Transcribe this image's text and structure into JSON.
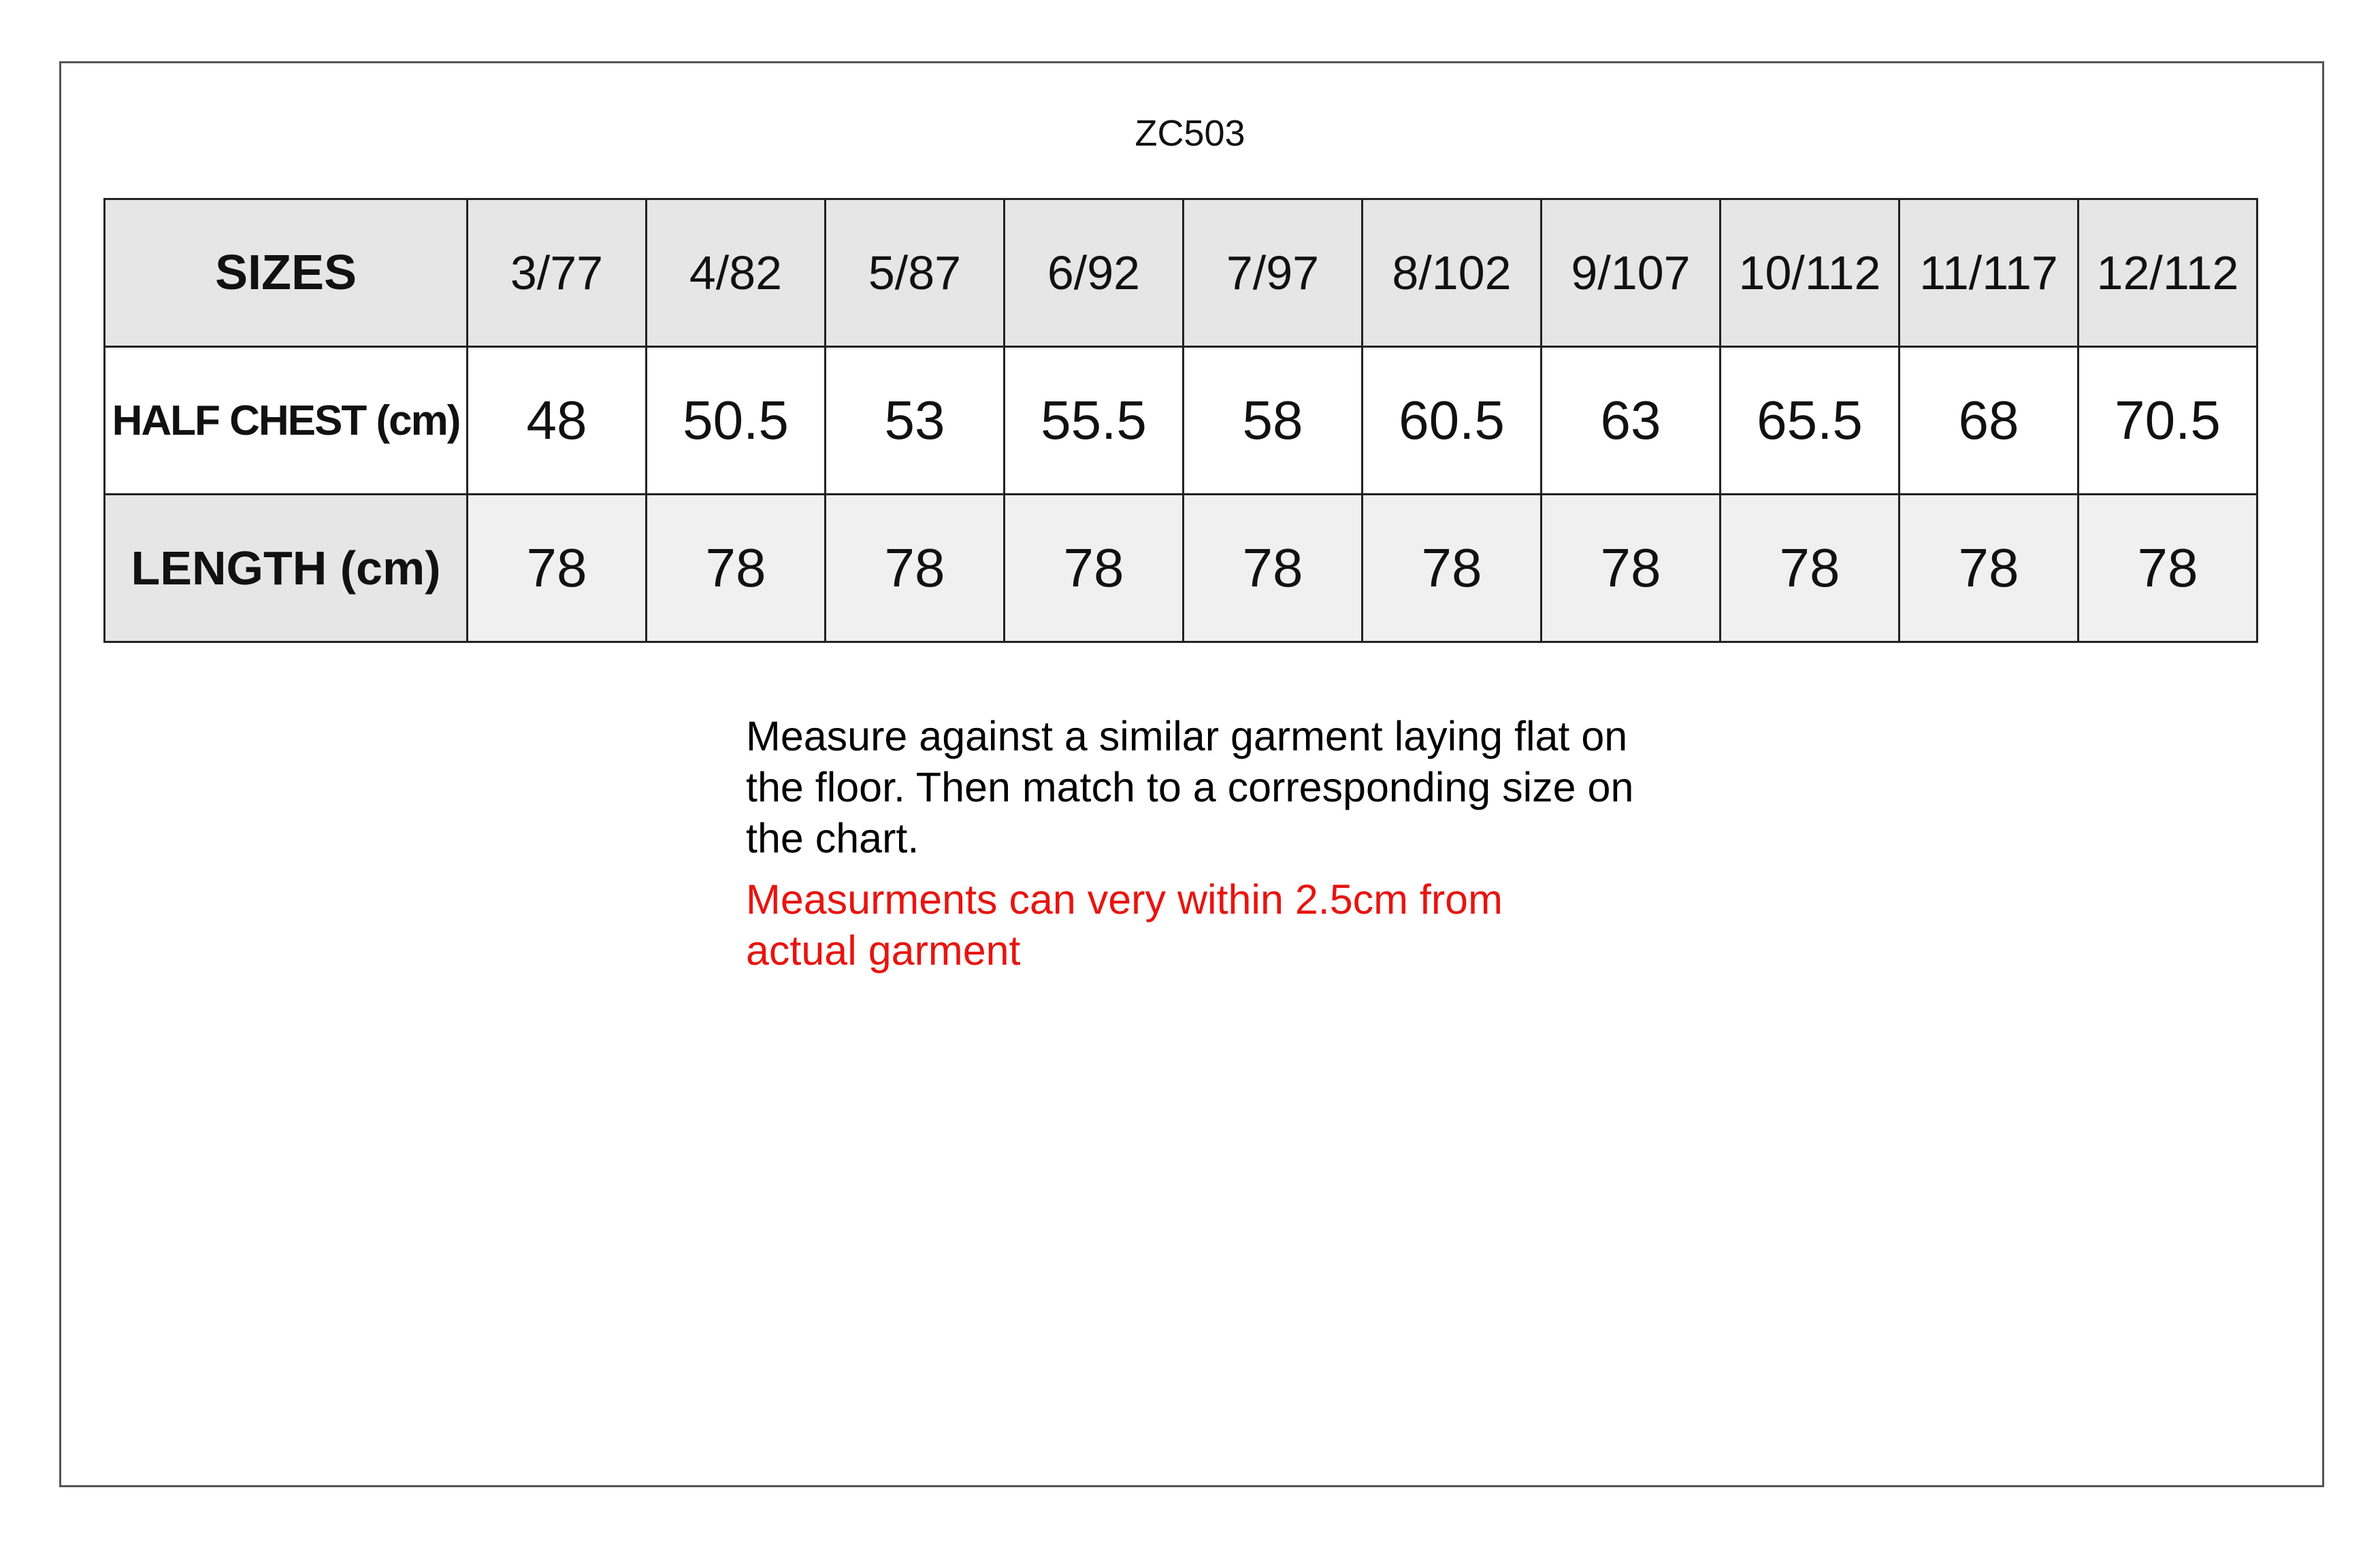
{
  "header": {
    "title": "ZC503"
  },
  "table": {
    "rows": [
      [
        "SIZES",
        "3/77",
        "4/82",
        "5/87",
        "6/92",
        "7/97",
        "8/102",
        "9/107",
        "10/112",
        "11/117",
        "12/112"
      ],
      [
        "HALF CHEST (cm)",
        "48",
        "50.5",
        "53",
        "55.5",
        "58",
        "60.5",
        "63",
        "65.5",
        "68",
        "70.5"
      ],
      [
        "LENGTH (cm)",
        "78",
        "78",
        "78",
        "78",
        "78",
        "78",
        "78",
        "78",
        "78",
        "78"
      ]
    ]
  },
  "notes": {
    "instruction": "Measure against a similar garment laying flat on the floor. Then match to a corresponding size on the chart.",
    "warning": "Measurments can very within 2.5cm from actual garment"
  }
}
